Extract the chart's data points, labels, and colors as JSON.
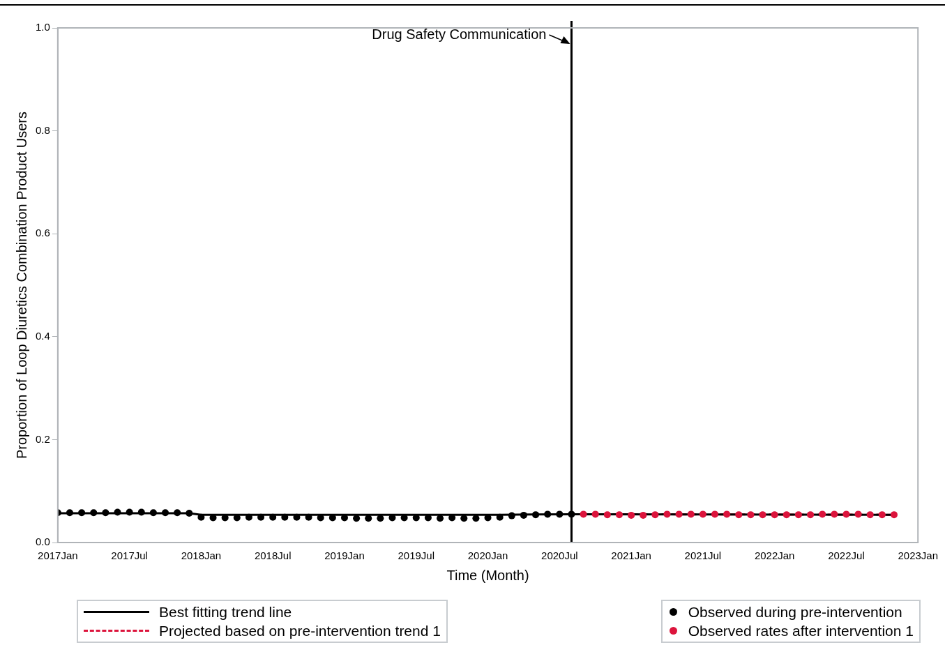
{
  "chart_data": {
    "type": "scatter",
    "xlabel": "Time (Month)",
    "ylabel": "Proportion of Loop Diuretics Combination Product Users",
    "xlim": [
      "2017-01",
      "2023-01"
    ],
    "xticks": [
      {
        "value": "2017-01",
        "label": "2017Jan"
      },
      {
        "value": "2017-07",
        "label": "2017Jul"
      },
      {
        "value": "2018-01",
        "label": "2018Jan"
      },
      {
        "value": "2018-07",
        "label": "2018Jul"
      },
      {
        "value": "2019-01",
        "label": "2019Jan"
      },
      {
        "value": "2019-07",
        "label": "2019Jul"
      },
      {
        "value": "2020-01",
        "label": "2020Jan"
      },
      {
        "value": "2020-07",
        "label": "2020Jul"
      },
      {
        "value": "2021-01",
        "label": "2021Jan"
      },
      {
        "value": "2021-07",
        "label": "2021Jul"
      },
      {
        "value": "2022-01",
        "label": "2022Jan"
      },
      {
        "value": "2022-07",
        "label": "2022Jul"
      },
      {
        "value": "2023-01",
        "label": "2023Jan"
      }
    ],
    "ylim": [
      0,
      1
    ],
    "yticks": [
      {
        "value": 0,
        "label": "0.0"
      },
      {
        "value": 0.2,
        "label": "0.2"
      },
      {
        "value": 0.4,
        "label": "0.4"
      },
      {
        "value": 0.6,
        "label": "0.6"
      },
      {
        "value": 0.8,
        "label": "0.8"
      },
      {
        "value": 1,
        "label": "1.0"
      }
    ],
    "grid": false,
    "legend": "bottom",
    "marker": "circle",
    "series": [
      {
        "name": "Best fitting trend line",
        "type": "line",
        "color": "#000000",
        "line_style": "solid",
        "marker": "none",
        "x": [
          "2017-01",
          "2017-12",
          "2018-01",
          "2020-02",
          "2020-08",
          "2022-11"
        ],
        "values": [
          0.057,
          0.057,
          0.054,
          0.054,
          0.055,
          0.054
        ]
      },
      {
        "name": "Projected based on pre-intervention trend 1",
        "type": "line",
        "color": "#dc143c",
        "line_style": "dashed",
        "marker": "none",
        "x": [
          "2020-09",
          "2022-11"
        ],
        "values": [
          0.055,
          0.054
        ]
      },
      {
        "name": "Observed during pre-intervention",
        "color": "#000000",
        "x": [
          "2017-01",
          "2017-02",
          "2017-03",
          "2017-04",
          "2017-05",
          "2017-06",
          "2017-07",
          "2017-08",
          "2017-09",
          "2017-10",
          "2017-11",
          "2017-12",
          "2018-01",
          "2018-02",
          "2018-03",
          "2018-04",
          "2018-05",
          "2018-06",
          "2018-07",
          "2018-08",
          "2018-09",
          "2018-10",
          "2018-11",
          "2018-12",
          "2019-01",
          "2019-02",
          "2019-03",
          "2019-04",
          "2019-05",
          "2019-06",
          "2019-07",
          "2019-08",
          "2019-09",
          "2019-10",
          "2019-11",
          "2019-12",
          "2020-01",
          "2020-02",
          "2020-03",
          "2020-04",
          "2020-05",
          "2020-06",
          "2020-07",
          "2020-08"
        ],
        "values": [
          0.058,
          0.058,
          0.058,
          0.058,
          0.058,
          0.059,
          0.059,
          0.059,
          0.058,
          0.058,
          0.058,
          0.057,
          0.049,
          0.048,
          0.048,
          0.048,
          0.049,
          0.049,
          0.049,
          0.049,
          0.049,
          0.049,
          0.048,
          0.048,
          0.048,
          0.047,
          0.047,
          0.047,
          0.048,
          0.048,
          0.048,
          0.048,
          0.047,
          0.048,
          0.047,
          0.047,
          0.048,
          0.049,
          0.052,
          0.053,
          0.054,
          0.055,
          0.055,
          0.055
        ]
      },
      {
        "name": "Observed rates after intervention 1",
        "color": "#dc143c",
        "x": [
          "2020-09",
          "2020-10",
          "2020-11",
          "2020-12",
          "2021-01",
          "2021-02",
          "2021-03",
          "2021-04",
          "2021-05",
          "2021-06",
          "2021-07",
          "2021-08",
          "2021-09",
          "2021-10",
          "2021-11",
          "2021-12",
          "2022-01",
          "2022-02",
          "2022-03",
          "2022-04",
          "2022-05",
          "2022-06",
          "2022-07",
          "2022-08",
          "2022-09",
          "2022-10",
          "2022-11"
        ],
        "values": [
          0.055,
          0.055,
          0.054,
          0.054,
          0.053,
          0.053,
          0.054,
          0.055,
          0.055,
          0.055,
          0.055,
          0.055,
          0.055,
          0.054,
          0.054,
          0.054,
          0.054,
          0.054,
          0.054,
          0.054,
          0.055,
          0.055,
          0.055,
          0.055,
          0.054,
          0.054,
          0.054
        ]
      }
    ],
    "ref_lines": [
      {
        "axis": "x",
        "value": "2020-08",
        "label": "Drug Safety Communication",
        "color": "#000000",
        "line_style": "solid"
      }
    ]
  }
}
